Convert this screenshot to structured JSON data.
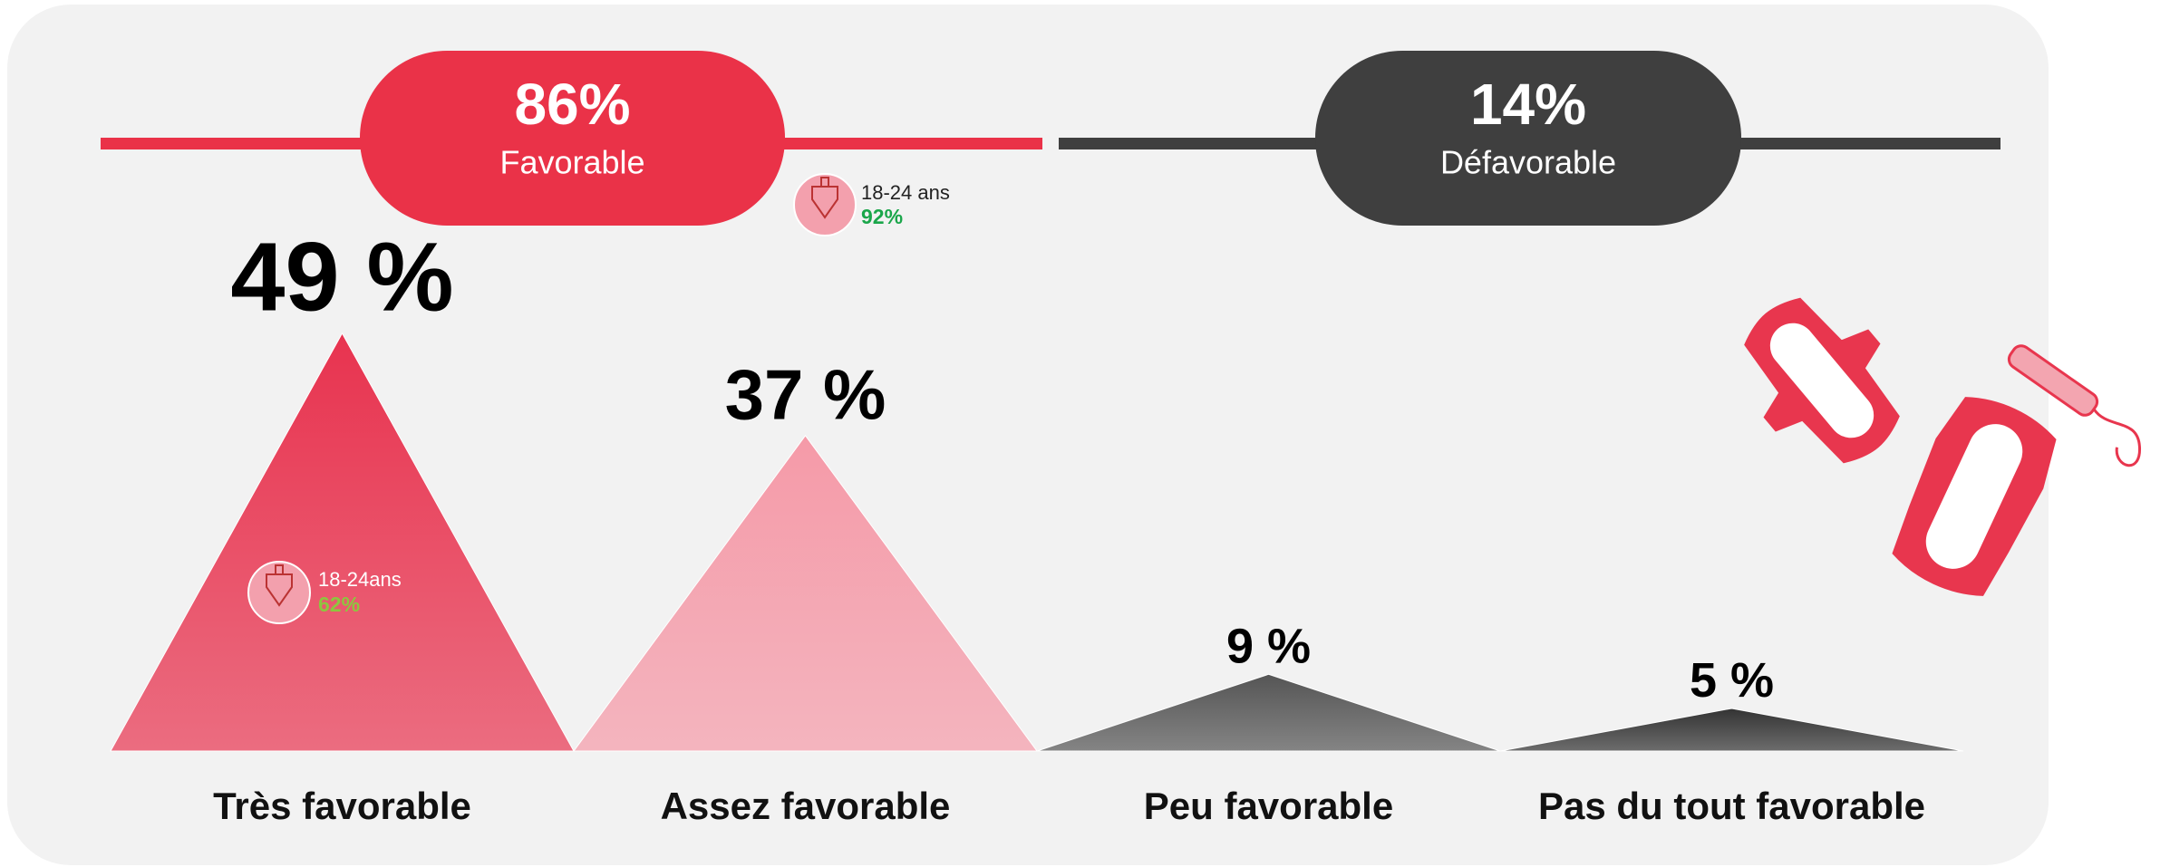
{
  "chart_data": {
    "type": "triangle",
    "categories": [
      "Très favorable",
      "Assez favorable",
      "Peu favorable",
      "Pas du tout favorable"
    ],
    "values": [
      49,
      37,
      9,
      5
    ],
    "value_labels": [
      "49 %",
      "37 %",
      "9 %",
      "5 %"
    ],
    "colors": [
      "#e8334f",
      "#f59aa8",
      "#555555",
      "#333333"
    ],
    "groups": [
      {
        "percent": "86%",
        "name": "Favorable",
        "color": "#ea3248"
      },
      {
        "percent": "14%",
        "name": "Défavorable",
        "color": "#3f3f3f"
      }
    ],
    "badges": [
      {
        "label": "18-24 ans",
        "value": "92%",
        "color": "#1aa64a"
      },
      {
        "label": "18-24ans",
        "value": "62%",
        "color": "#8dc63f"
      }
    ]
  }
}
